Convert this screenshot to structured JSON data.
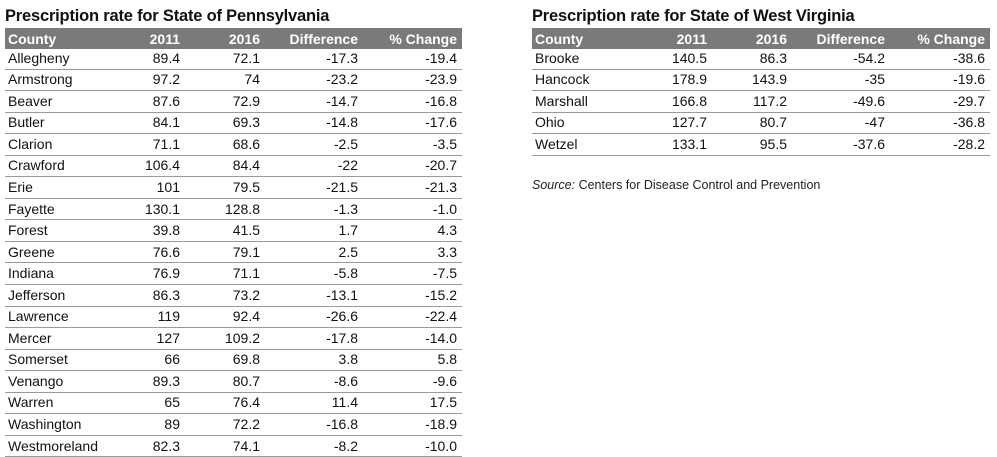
{
  "pennsylvania": {
    "title": "Prescription rate for State of Pennsylvania",
    "columns": [
      "County",
      "2011",
      "2016",
      "Difference",
      "% Change"
    ],
    "rows": [
      [
        "Allegheny",
        "89.4",
        "72.1",
        "-17.3",
        "-19.4"
      ],
      [
        "Armstrong",
        "97.2",
        "74",
        "-23.2",
        "-23.9"
      ],
      [
        "Beaver",
        "87.6",
        "72.9",
        "-14.7",
        "-16.8"
      ],
      [
        "Butler",
        "84.1",
        "69.3",
        "-14.8",
        "-17.6"
      ],
      [
        "Clarion",
        "71.1",
        "68.6",
        "-2.5",
        "-3.5"
      ],
      [
        "Crawford",
        "106.4",
        "84.4",
        "-22",
        "-20.7"
      ],
      [
        "Erie",
        "101",
        "79.5",
        "-21.5",
        "-21.3"
      ],
      [
        "Fayette",
        "130.1",
        "128.8",
        "-1.3",
        "-1.0"
      ],
      [
        "Forest",
        "39.8",
        "41.5",
        "1.7",
        "4.3"
      ],
      [
        "Greene",
        "76.6",
        "79.1",
        "2.5",
        "3.3"
      ],
      [
        "Indiana",
        "76.9",
        "71.1",
        "-5.8",
        "-7.5"
      ],
      [
        "Jefferson",
        "86.3",
        "73.2",
        "-13.1",
        "-15.2"
      ],
      [
        "Lawrence",
        "119",
        "92.4",
        "-26.6",
        "-22.4"
      ],
      [
        "Mercer",
        "127",
        "109.2",
        "-17.8",
        "-14.0"
      ],
      [
        "Somerset",
        "66",
        "69.8",
        "3.8",
        "5.8"
      ],
      [
        "Venango",
        "89.3",
        "80.7",
        "-8.6",
        "-9.6"
      ],
      [
        "Warren",
        "65",
        "76.4",
        "11.4",
        "17.5"
      ],
      [
        "Washington",
        "89",
        "72.2",
        "-16.8",
        "-18.9"
      ],
      [
        "Westmoreland",
        "82.3",
        "74.1",
        "-8.2",
        "-10.0"
      ]
    ]
  },
  "west_virginia": {
    "title": "Prescription rate for State of West Virginia",
    "columns": [
      "County",
      "2011",
      "2016",
      "Difference",
      "% Change"
    ],
    "rows": [
      [
        "Brooke",
        "140.5",
        "86.3",
        "-54.2",
        "-38.6"
      ],
      [
        "Hancock",
        "178.9",
        "143.9",
        "-35",
        "-19.6"
      ],
      [
        "Marshall",
        "166.8",
        "117.2",
        "-49.6",
        "-29.7"
      ],
      [
        "Ohio",
        "127.7",
        "80.7",
        "-47",
        "-36.8"
      ],
      [
        "Wetzel",
        "133.1",
        "95.5",
        "-37.6",
        "-28.2"
      ]
    ]
  },
  "source": {
    "label": "Source:",
    "text": " Centers for Disease Control and Prevention"
  },
  "colors": {
    "header_bg": "#7a7a7a",
    "header_text": "#ffffff",
    "row_border": "#9a9a9a"
  }
}
